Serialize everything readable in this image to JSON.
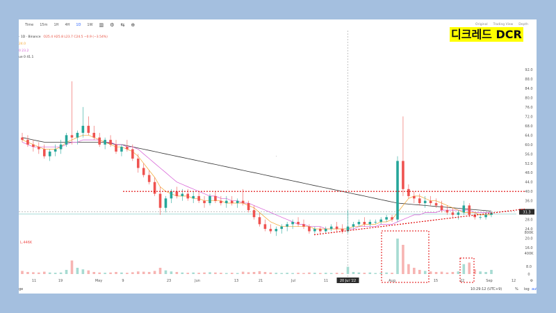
{
  "toolbar": {
    "timeframes": [
      "Time",
      "15m",
      "1H",
      "4H",
      "1D",
      "1W"
    ],
    "active_timeframe": "1D",
    "icons": [
      "candles-icon",
      "indicators-icon",
      "compare-icon",
      "add-icon"
    ],
    "views": [
      "Original",
      "Trading View",
      "Depth"
    ]
  },
  "legend": {
    "symbol": "· 1D · Binance",
    "ohlc": "O25.4  H25.8  L23.7  C24.5  −0.9 (−3.54%)",
    "ma1": "24.0",
    "ma2": "0  23.2",
    "ma3": "ue 0  41.1",
    "volume_label": "L.446K"
  },
  "title_badge": "디크레드 DCR",
  "crosshair_date": "20 Jul '22",
  "clock": "10:29:12 (UTC+9)",
  "range_label": "ge",
  "scale_buttons": {
    "pct": "%",
    "log": "log",
    "auto": "auto"
  },
  "colors": {
    "up": "#26a69a",
    "down": "#ef5350",
    "ma_fast": "#f3a52d",
    "ma_mid": "#d55bd5",
    "ma_slow": "#333333",
    "annotation": "#e00000"
  },
  "chart_data": {
    "type": "candlestick",
    "y_ticks": [
      8.0,
      16.0,
      20.0,
      24.0,
      28.0,
      32.0,
      36.0,
      40.0,
      44.0,
      48.0,
      52.0,
      56.0,
      60.0,
      64.0,
      68.0,
      72.0,
      76.0,
      80.0,
      84.0,
      88.0,
      92.0
    ],
    "y_tick_labels": [
      "8.0",
      "16.0",
      "20.0",
      "24.0",
      "28.0",
      "",
      "36.0",
      "40.0",
      "44.0",
      "48.0",
      "52.0",
      "56.0",
      "60.0",
      "64.0",
      "68.0",
      "72.0",
      "76.0",
      "80.0",
      "84.0",
      "88.0",
      "92.0"
    ],
    "last_price_label": "31.3",
    "ylim": [
      8,
      96
    ],
    "volume_ticks": [
      "800K",
      "400K",
      "0"
    ],
    "x_tick_labels": [
      "11",
      "19",
      "May",
      "9",
      "23",
      "Jun",
      "13",
      "21",
      "Jul",
      "11",
      "Aug",
      "15",
      "22",
      "Sep",
      "12"
    ],
    "ohlc": [
      {
        "o": 63,
        "h": 65,
        "l": 61,
        "c": 62
      },
      {
        "o": 62,
        "h": 64,
        "l": 59,
        "c": 60
      },
      {
        "o": 60,
        "h": 62,
        "l": 57,
        "c": 59
      },
      {
        "o": 59,
        "h": 61,
        "l": 56,
        "c": 58
      },
      {
        "o": 58,
        "h": 60,
        "l": 54,
        "c": 55
      },
      {
        "o": 55,
        "h": 58,
        "l": 53,
        "c": 57
      },
      {
        "o": 57,
        "h": 60,
        "l": 55,
        "c": 58
      },
      {
        "o": 58,
        "h": 62,
        "l": 56,
        "c": 60
      },
      {
        "o": 60,
        "h": 65,
        "l": 59,
        "c": 64
      },
      {
        "o": 64,
        "h": 87,
        "l": 60,
        "c": 63
      },
      {
        "o": 63,
        "h": 66,
        "l": 60,
        "c": 65
      },
      {
        "o": 65,
        "h": 76,
        "l": 63,
        "c": 68
      },
      {
        "o": 68,
        "h": 72,
        "l": 64,
        "c": 65
      },
      {
        "o": 65,
        "h": 68,
        "l": 62,
        "c": 63
      },
      {
        "o": 63,
        "h": 65,
        "l": 59,
        "c": 60
      },
      {
        "o": 60,
        "h": 63,
        "l": 58,
        "c": 62
      },
      {
        "o": 62,
        "h": 64,
        "l": 59,
        "c": 60
      },
      {
        "o": 60,
        "h": 62,
        "l": 56,
        "c": 57
      },
      {
        "o": 57,
        "h": 60,
        "l": 55,
        "c": 59
      },
      {
        "o": 59,
        "h": 62,
        "l": 57,
        "c": 58
      },
      {
        "o": 58,
        "h": 60,
        "l": 53,
        "c": 54
      },
      {
        "o": 54,
        "h": 56,
        "l": 48,
        "c": 50
      },
      {
        "o": 50,
        "h": 52,
        "l": 46,
        "c": 47
      },
      {
        "o": 47,
        "h": 49,
        "l": 43,
        "c": 44
      },
      {
        "o": 44,
        "h": 46,
        "l": 38,
        "c": 39
      },
      {
        "o": 39,
        "h": 42,
        "l": 30,
        "c": 33
      },
      {
        "o": 33,
        "h": 38,
        "l": 31,
        "c": 37
      },
      {
        "o": 37,
        "h": 41,
        "l": 35,
        "c": 40
      },
      {
        "o": 40,
        "h": 42,
        "l": 37,
        "c": 38
      },
      {
        "o": 38,
        "h": 41,
        "l": 36,
        "c": 39
      },
      {
        "o": 39,
        "h": 41,
        "l": 36,
        "c": 37
      },
      {
        "o": 37,
        "h": 40,
        "l": 35,
        "c": 38
      },
      {
        "o": 38,
        "h": 40,
        "l": 35,
        "c": 36
      },
      {
        "o": 36,
        "h": 38,
        "l": 33,
        "c": 35
      },
      {
        "o": 35,
        "h": 39,
        "l": 34,
        "c": 38
      },
      {
        "o": 38,
        "h": 40,
        "l": 35,
        "c": 36
      },
      {
        "o": 36,
        "h": 38,
        "l": 34,
        "c": 35
      },
      {
        "o": 35,
        "h": 38,
        "l": 33,
        "c": 36
      },
      {
        "o": 36,
        "h": 38,
        "l": 34,
        "c": 35
      },
      {
        "o": 35,
        "h": 37,
        "l": 33,
        "c": 36
      },
      {
        "o": 36,
        "h": 41,
        "l": 34,
        "c": 35
      },
      {
        "o": 35,
        "h": 36,
        "l": 31,
        "c": 32
      },
      {
        "o": 32,
        "h": 34,
        "l": 28,
        "c": 29
      },
      {
        "o": 29,
        "h": 31,
        "l": 25,
        "c": 26
      },
      {
        "o": 26,
        "h": 28,
        "l": 23,
        "c": 24
      },
      {
        "o": 24,
        "h": 26,
        "l": 22,
        "c": 23
      },
      {
        "o": 23,
        "h": 25,
        "l": 21,
        "c": 24
      },
      {
        "o": 24,
        "h": 26,
        "l": 22,
        "c": 25
      },
      {
        "o": 25,
        "h": 27,
        "l": 23,
        "c": 26
      },
      {
        "o": 26,
        "h": 28,
        "l": 24,
        "c": 27
      },
      {
        "o": 27,
        "h": 29,
        "l": 25,
        "c": 26
      },
      {
        "o": 26,
        "h": 28,
        "l": 24,
        "c": 25
      },
      {
        "o": 25,
        "h": 26,
        "l": 22,
        "c": 23
      },
      {
        "o": 23,
        "h": 25,
        "l": 22,
        "c": 24
      },
      {
        "o": 24,
        "h": 25,
        "l": 22,
        "c": 23
      },
      {
        "o": 23,
        "h": 25,
        "l": 22,
        "c": 24
      },
      {
        "o": 24,
        "h": 26,
        "l": 23,
        "c": 25
      },
      {
        "o": 25,
        "h": 27,
        "l": 23,
        "c": 24
      },
      {
        "o": 24,
        "h": 26,
        "l": 22,
        "c": 23
      },
      {
        "o": 23,
        "h": 32,
        "l": 22,
        "c": 25
      },
      {
        "o": 25,
        "h": 27,
        "l": 24,
        "c": 26
      },
      {
        "o": 26,
        "h": 28,
        "l": 25,
        "c": 27
      },
      {
        "o": 27,
        "h": 29,
        "l": 25,
        "c": 26
      },
      {
        "o": 26,
        "h": 28,
        "l": 25,
        "c": 27
      },
      {
        "o": 27,
        "h": 28,
        "l": 26,
        "c": 27
      },
      {
        "o": 27,
        "h": 29,
        "l": 26,
        "c": 28
      },
      {
        "o": 28,
        "h": 30,
        "l": 27,
        "c": 29
      },
      {
        "o": 29,
        "h": 30,
        "l": 27,
        "c": 28
      },
      {
        "o": 28,
        "h": 55,
        "l": 27,
        "c": 53
      },
      {
        "o": 53,
        "h": 72,
        "l": 38,
        "c": 41
      },
      {
        "o": 41,
        "h": 43,
        "l": 37,
        "c": 38
      },
      {
        "o": 38,
        "h": 40,
        "l": 35,
        "c": 37
      },
      {
        "o": 37,
        "h": 39,
        "l": 34,
        "c": 35
      },
      {
        "o": 35,
        "h": 38,
        "l": 33,
        "c": 36
      },
      {
        "o": 36,
        "h": 38,
        "l": 34,
        "c": 35
      },
      {
        "o": 35,
        "h": 37,
        "l": 33,
        "c": 34
      },
      {
        "o": 34,
        "h": 36,
        "l": 31,
        "c": 32
      },
      {
        "o": 32,
        "h": 34,
        "l": 30,
        "c": 31
      },
      {
        "o": 31,
        "h": 33,
        "l": 29,
        "c": 30
      },
      {
        "o": 30,
        "h": 32,
        "l": 28,
        "c": 31
      },
      {
        "o": 31,
        "h": 36,
        "l": 30,
        "c": 34
      },
      {
        "o": 34,
        "h": 35,
        "l": 29,
        "c": 30
      },
      {
        "o": 30,
        "h": 31,
        "l": 28,
        "c": 29
      },
      {
        "o": 29,
        "h": 30,
        "l": 28,
        "c": 29
      },
      {
        "o": 29,
        "h": 31,
        "l": 28,
        "c": 30
      },
      {
        "o": 30,
        "h": 31,
        "l": 29,
        "c": 31
      }
    ],
    "volume": [
      60,
      40,
      35,
      30,
      45,
      30,
      25,
      30,
      80,
      260,
      120,
      90,
      70,
      40,
      30,
      25,
      30,
      40,
      30,
      25,
      35,
      50,
      45,
      40,
      60,
      120,
      70,
      50,
      40,
      30,
      25,
      30,
      25,
      30,
      35,
      30,
      25,
      20,
      25,
      20,
      45,
      35,
      40,
      55,
      40,
      30,
      25,
      20,
      25,
      20,
      25,
      20,
      30,
      25,
      20,
      25,
      20,
      25,
      20,
      140,
      40,
      30,
      25,
      30,
      20,
      25,
      30,
      25,
      680,
      560,
      190,
      120,
      80,
      60,
      50,
      40,
      45,
      30,
      40,
      50,
      190,
      220,
      90,
      50,
      40,
      80
    ],
    "ma_fast": [
      62,
      61,
      60,
      59,
      58,
      58,
      58,
      59,
      61,
      62,
      63,
      64,
      64,
      63,
      62,
      61,
      60,
      59,
      59,
      58,
      57,
      55,
      52,
      49,
      46,
      42,
      40,
      39,
      38,
      38,
      38,
      37,
      37,
      36,
      36,
      36,
      36,
      35,
      35,
      35,
      35,
      34,
      33,
      31,
      29,
      27,
      26,
      25,
      25,
      25,
      25,
      25,
      25,
      24,
      24,
      24,
      24,
      24,
      24,
      24,
      25,
      25,
      26,
      26,
      26,
      27,
      27,
      28,
      31,
      34,
      37,
      38,
      38,
      37,
      36,
      36,
      35,
      34,
      33,
      32,
      31,
      31,
      31,
      30,
      30,
      30
    ],
    "ma_mid": [
      61,
      60,
      59,
      59,
      59,
      59,
      59,
      59,
      60,
      61,
      61,
      62,
      62,
      62,
      62,
      61,
      61,
      60,
      60,
      59,
      59,
      58,
      56,
      54,
      52,
      50,
      48,
      46,
      44,
      43,
      42,
      41,
      40,
      39,
      38,
      38,
      37,
      37,
      36,
      36,
      35,
      35,
      34,
      33,
      32,
      31,
      30,
      29,
      28,
      27,
      26,
      26,
      25,
      25,
      25,
      24,
      24,
      24,
      24,
      24,
      24,
      25,
      25,
      25,
      25,
      26,
      26,
      26,
      27,
      28,
      29,
      30,
      30,
      31,
      31,
      31,
      32,
      32,
      32,
      32,
      32,
      32,
      31,
      31,
      31,
      31
    ],
    "ma_slow": [
      63,
      62.5,
      62,
      61.5,
      61,
      61,
      61,
      61,
      61,
      61,
      61,
      61,
      61,
      61,
      61,
      61,
      60.5,
      60,
      60,
      59.5,
      59,
      58.5,
      58,
      57.5,
      57,
      56.5,
      56,
      55.5,
      55,
      54.5,
      54,
      53.5,
      53,
      52.5,
      52,
      51.5,
      51,
      50.5,
      50,
      49.5,
      49,
      48.5,
      48,
      47.5,
      47,
      46.5,
      46,
      45.5,
      45,
      44.5,
      44,
      43.5,
      43,
      42.5,
      42,
      41.5,
      41,
      40.5,
      40,
      39.5,
      39,
      38.5,
      38,
      37.5,
      37,
      36.5,
      36,
      35.5,
      35,
      34.8,
      34.6,
      34.4,
      34.2,
      34,
      33.8,
      33.6,
      33.4,
      33.2,
      33,
      32.8,
      32.6,
      32.4,
      32.2,
      32,
      31.8,
      31.6
    ]
  }
}
